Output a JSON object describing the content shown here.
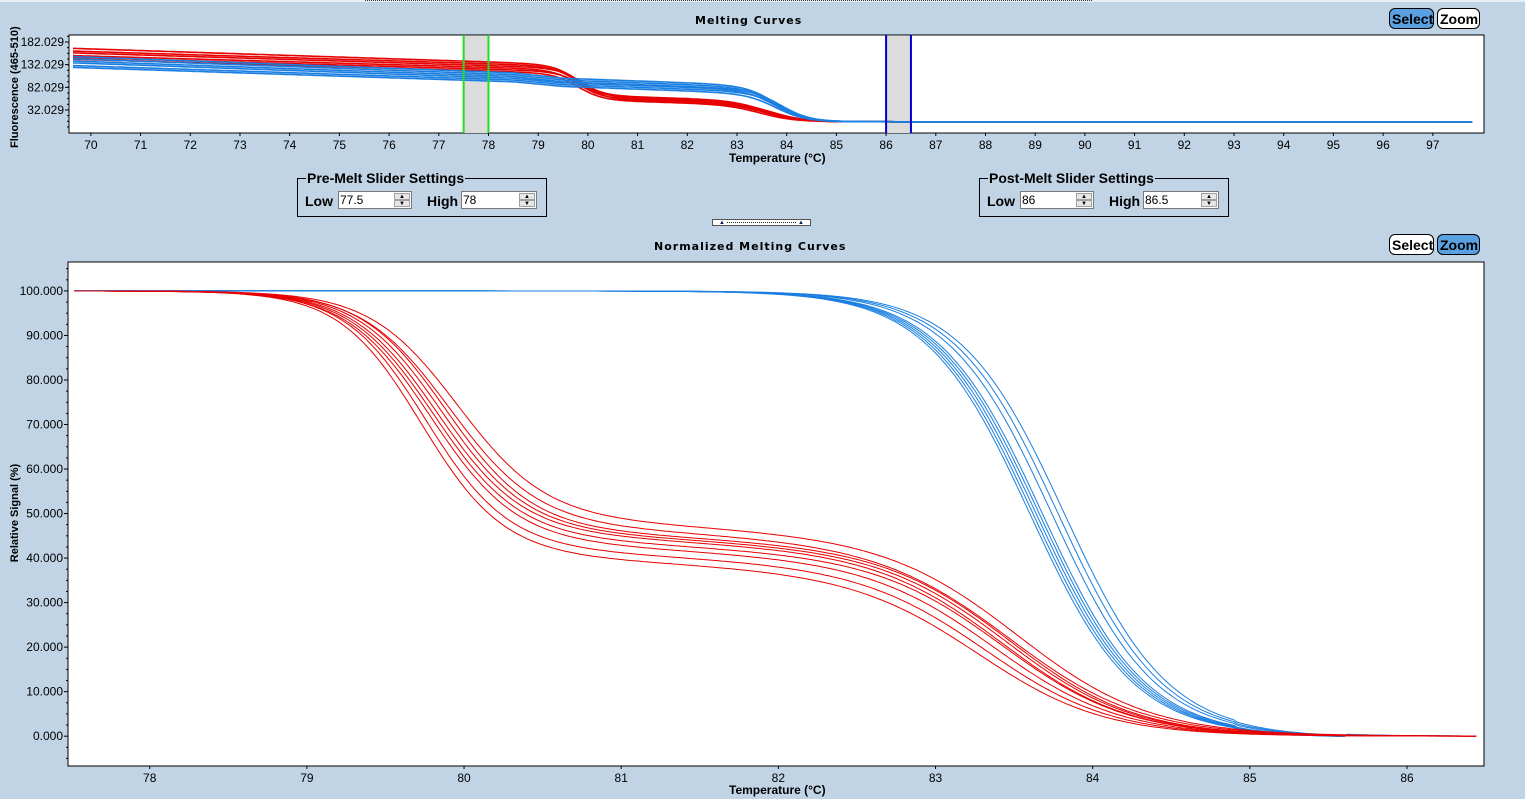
{
  "top_panel": {
    "title": "Melting Curves",
    "select_button": "Select",
    "zoom_button": "Zoom",
    "active_mode": "select"
  },
  "pre_melt": {
    "legend": "Pre-Melt Slider Settings",
    "low_label": "Low",
    "low_value": "77.5",
    "high_label": "High",
    "high_value": "78"
  },
  "post_melt": {
    "legend": "Post-Melt Slider Settings",
    "low_label": "Low",
    "low_value": "86",
    "high_label": "High",
    "high_value": "86.5"
  },
  "bottom_panel": {
    "title": "Normalized Melting Curves",
    "select_button": "Select",
    "zoom_button": "Zoom",
    "active_mode": "zoom"
  },
  "colors": {
    "background": "#c1d4e5",
    "red_series": "#e60000",
    "blue_series": "#1a7fe0",
    "pre_melt_cursor": "#22dd22",
    "post_melt_cursor": "#0000cc",
    "cursor_band": "#dcdcdc",
    "active_button": "#5aa0e0"
  },
  "chart_data": [
    {
      "type": "line",
      "title": "Melting Curves",
      "xlabel": "Temperature (°C)",
      "ylabel": "Fluorescence (465-510)",
      "xlim": [
        69.56,
        98.03
      ],
      "ylim": [
        -18.8,
        197.5
      ],
      "xticks": [
        70,
        71,
        72,
        73,
        74,
        75,
        76,
        77,
        78,
        79,
        80,
        81,
        82,
        83,
        84,
        85,
        86,
        87,
        88,
        89,
        90,
        91,
        92,
        93,
        94,
        95,
        96,
        97
      ],
      "yticks": [
        "182.029",
        "132.029",
        "82.029",
        "32.029"
      ],
      "ytick_values": [
        182.029,
        132.029,
        82.029,
        32.029
      ],
      "grid": false,
      "curve_end": 97.8,
      "baseline": 6,
      "pre_melt_range": [
        77.5,
        78
      ],
      "post_melt_range": [
        86,
        86.5
      ],
      "series": [
        {
          "name": "red-1",
          "color": "red",
          "start": 168,
          "pre_end": 138,
          "tm1": 79.8,
          "plateau": 62,
          "tm2": 83.6
        },
        {
          "name": "red-2",
          "color": "red",
          "start": 162,
          "pre_end": 134,
          "tm1": 79.8,
          "plateau": 60,
          "tm2": 83.6
        },
        {
          "name": "red-3",
          "color": "red",
          "start": 158,
          "pre_end": 130,
          "tm1": 79.9,
          "plateau": 58,
          "tm2": 83.7
        },
        {
          "name": "red-4",
          "color": "red",
          "start": 152,
          "pre_end": 126,
          "tm1": 79.8,
          "plateau": 56,
          "tm2": 83.6
        },
        {
          "name": "red-5",
          "color": "red",
          "start": 148,
          "pre_end": 122,
          "tm1": 79.9,
          "plateau": 54,
          "tm2": 83.6
        },
        {
          "name": "red-6",
          "color": "red",
          "start": 144,
          "pre_end": 118,
          "tm1": 79.8,
          "plateau": 52,
          "tm2": 83.5
        },
        {
          "name": "blue-1",
          "color": "blue",
          "start": 150,
          "pre_end": 116,
          "tm": 83.8,
          "shoulder": 100
        },
        {
          "name": "blue-2",
          "color": "blue",
          "start": 145,
          "pre_end": 112,
          "tm": 83.8,
          "shoulder": 96
        },
        {
          "name": "blue-3",
          "color": "blue",
          "start": 140,
          "pre_end": 108,
          "tm": 83.9,
          "shoulder": 92
        },
        {
          "name": "blue-4",
          "color": "blue",
          "start": 136,
          "pre_end": 104,
          "tm": 83.8,
          "shoulder": 90
        },
        {
          "name": "blue-5",
          "color": "blue",
          "start": 130,
          "pre_end": 100,
          "tm": 83.9,
          "shoulder": 86
        },
        {
          "name": "blue-6",
          "color": "blue",
          "start": 126,
          "pre_end": 96,
          "tm": 83.8,
          "shoulder": 82
        }
      ]
    },
    {
      "type": "line",
      "title": "Normalized Melting Curves",
      "xlabel": "Temperature (°C)",
      "ylabel": "Relative Signal (%)",
      "xlim": [
        77.48,
        86.49
      ],
      "ylim": [
        -6.7,
        106.5
      ],
      "xticks": [
        78,
        79,
        80,
        81,
        82,
        83,
        84,
        85,
        86
      ],
      "yticks": [
        "100.000",
        "90.000",
        "80.000",
        "70.000",
        "60.000",
        "50.000",
        "40.000",
        "30.000",
        "20.000",
        "10.000",
        "0.000"
      ],
      "ytick_values": [
        100,
        90,
        80,
        70,
        60,
        50,
        40,
        30,
        20,
        10,
        0
      ],
      "grid": false,
      "x_start": 77.52,
      "x_end": 86.45,
      "series": [
        {
          "name": "red-n1",
          "color": "red",
          "tm1": 79.95,
          "w1": 0.28,
          "plateau": 48.5,
          "tm2": 83.55,
          "w2": 0.42
        },
        {
          "name": "red-n2",
          "color": "red",
          "tm1": 79.9,
          "w1": 0.28,
          "plateau": 47.0,
          "tm2": 83.5,
          "w2": 0.42
        },
        {
          "name": "red-n3",
          "color": "red",
          "tm1": 79.88,
          "w1": 0.27,
          "plateau": 46.0,
          "tm2": 83.5,
          "w2": 0.4
        },
        {
          "name": "red-n4",
          "color": "red",
          "tm1": 79.85,
          "w1": 0.27,
          "plateau": 45.5,
          "tm2": 83.48,
          "w2": 0.4
        },
        {
          "name": "red-n5",
          "color": "red",
          "tm1": 79.82,
          "w1": 0.27,
          "plateau": 45.0,
          "tm2": 83.45,
          "w2": 0.4
        },
        {
          "name": "red-n6",
          "color": "red",
          "tm1": 79.8,
          "w1": 0.27,
          "plateau": 44.0,
          "tm2": 83.45,
          "w2": 0.4
        },
        {
          "name": "red-n7",
          "color": "red",
          "tm1": 79.78,
          "w1": 0.27,
          "plateau": 43.0,
          "tm2": 83.4,
          "w2": 0.4
        },
        {
          "name": "red-n8",
          "color": "red",
          "tm1": 79.75,
          "w1": 0.26,
          "plateau": 41.5,
          "tm2": 83.35,
          "w2": 0.4
        },
        {
          "name": "red-n9",
          "color": "red",
          "tm1": 79.72,
          "w1": 0.26,
          "plateau": 40.0,
          "tm2": 83.3,
          "w2": 0.4
        },
        {
          "name": "blue-n1",
          "color": "blue",
          "tm": 83.82,
          "w": 0.33
        },
        {
          "name": "blue-n2",
          "color": "blue",
          "tm": 83.78,
          "w": 0.33
        },
        {
          "name": "blue-n3",
          "color": "blue",
          "tm": 83.74,
          "w": 0.33
        },
        {
          "name": "blue-n4",
          "color": "blue",
          "tm": 83.68,
          "w": 0.33
        },
        {
          "name": "blue-n5",
          "color": "blue",
          "tm": 83.66,
          "w": 0.33
        },
        {
          "name": "blue-n6",
          "color": "blue",
          "tm": 83.64,
          "w": 0.33
        },
        {
          "name": "blue-n7",
          "color": "blue",
          "tm": 83.62,
          "w": 0.33
        },
        {
          "name": "blue-n8",
          "color": "blue",
          "tm": 83.6,
          "w": 0.33
        }
      ]
    }
  ]
}
